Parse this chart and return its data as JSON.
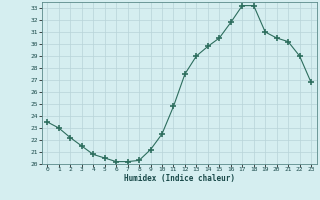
{
  "x": [
    0,
    1,
    2,
    3,
    4,
    5,
    6,
    7,
    8,
    9,
    10,
    11,
    12,
    13,
    14,
    15,
    16,
    17,
    18,
    19,
    20,
    21,
    22,
    23
  ],
  "y": [
    23.5,
    23.0,
    22.2,
    21.5,
    20.8,
    20.5,
    20.2,
    20.2,
    20.3,
    21.2,
    22.5,
    24.8,
    27.5,
    29.0,
    29.8,
    30.5,
    31.8,
    33.2,
    33.2,
    31.0,
    30.5,
    30.2,
    29.0,
    26.8
  ],
  "xlabel": "Humidex (Indice chaleur)",
  "ylim": [
    20,
    33.5
  ],
  "xlim": [
    -0.5,
    23.5
  ],
  "yticks": [
    20,
    21,
    22,
    23,
    24,
    25,
    26,
    27,
    28,
    29,
    30,
    31,
    32,
    33
  ],
  "xticks": [
    0,
    1,
    2,
    3,
    4,
    5,
    6,
    7,
    8,
    9,
    10,
    11,
    12,
    13,
    14,
    15,
    16,
    17,
    18,
    19,
    20,
    21,
    22,
    23
  ],
  "line_color": "#2d6e5e",
  "marker": "+",
  "marker_size": 4,
  "bg_color": "#d5eef0",
  "grid_color": "#b8d4d8",
  "spine_color": "#5a8a8a"
}
